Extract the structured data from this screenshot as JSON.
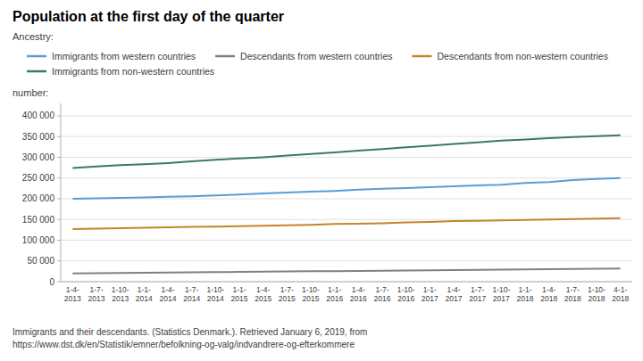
{
  "chart_data": {
    "type": "line",
    "title": "Population at the first day of the quarter",
    "subtitle": "Ancestry:",
    "ylabel": "number:",
    "source": "Immigrants and their descendants. (Statistics Denmark.). Retrieved January 6, 2019, from\nhttps://www.dst.dk/en/Statistik/emner/befolkning-og-valg/indvandrere-og-efterkommere",
    "categories": [
      "1-4-\n2013",
      "1-7-\n2013",
      "1-10-\n2013",
      "1-1-\n2014",
      "1-4-\n2014",
      "1-7-\n2014",
      "1-10-\n2014",
      "1-1-\n2015",
      "1-4-\n2015",
      "1-7-\n2015",
      "1-10-\n2015",
      "1-1-\n2016",
      "1-4-\n2016",
      "1-7-\n2016",
      "1-10-\n2016",
      "1-1-\n2017",
      "1-4-\n2017",
      "1-7-\n2017",
      "1-10-\n2017",
      "1-1-\n2018",
      "1-4-\n2018",
      "1-7-\n2018",
      "1-10-\n2018",
      "4-1-\n2018"
    ],
    "series": [
      {
        "name": "Immigrants from western countries",
        "color": "#5b9bd5",
        "values": [
          200000,
          201000,
          202000,
          203000,
          205000,
          206000,
          208000,
          210000,
          213000,
          215000,
          217000,
          219000,
          222000,
          224000,
          226000,
          228000,
          230000,
          232000,
          234000,
          238000,
          240000,
          245000,
          248000,
          250000
        ]
      },
      {
        "name": "Descendants from western countries",
        "color": "#808080",
        "values": [
          20000,
          20500,
          21000,
          21500,
          22000,
          22500,
          23000,
          23500,
          24000,
          24500,
          25000,
          25500,
          26000,
          26500,
          27000,
          27500,
          28000,
          28500,
          29000,
          29500,
          30000,
          30500,
          31000,
          31500
        ]
      },
      {
        "name": "Descendants from non-western countries",
        "color": "#c4862a",
        "values": [
          127000,
          128000,
          129000,
          130000,
          131000,
          132000,
          133000,
          134000,
          135000,
          136000,
          137000,
          139000,
          140000,
          141000,
          143000,
          144000,
          146000,
          147000,
          148000,
          149000,
          150000,
          151000,
          152000,
          153000
        ]
      },
      {
        "name": "Immigrants from non-western countries",
        "color": "#3d7a5a",
        "values": [
          274000,
          278000,
          281000,
          283000,
          286000,
          290000,
          294000,
          297000,
          300000,
          304000,
          308000,
          312000,
          316000,
          320000,
          324000,
          328000,
          332000,
          336000,
          340000,
          343000,
          346000,
          349000,
          351000,
          353000
        ]
      }
    ],
    "ylim": [
      0,
      430000
    ],
    "yticks": [
      0,
      {
        "value": 50000,
        "label": "50 000"
      },
      {
        "value": 100000,
        "label": "100 000"
      },
      {
        "value": 150000,
        "label": "150 000"
      },
      {
        "value": 200000,
        "label": "200 000"
      },
      {
        "value": 250000,
        "label": "250 000"
      },
      {
        "value": 300000,
        "label": "300 000"
      },
      {
        "value": 350000,
        "label": "350 000"
      },
      {
        "value": 400000,
        "label": "400 000"
      }
    ],
    "grid": true,
    "legend": "top"
  }
}
